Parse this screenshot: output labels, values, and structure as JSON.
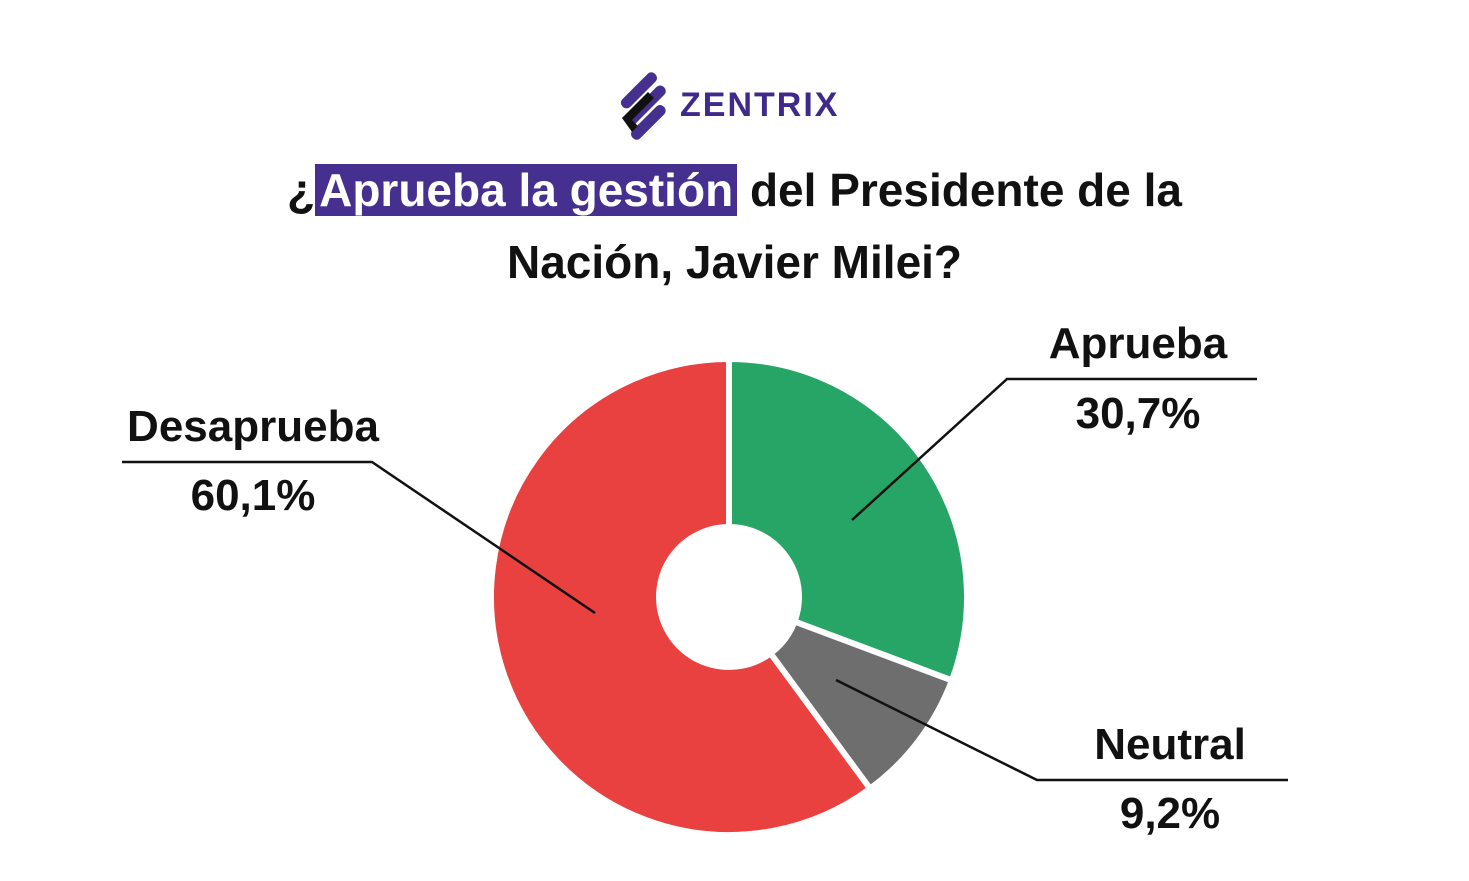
{
  "logo": {
    "text": "ZENTRIX"
  },
  "title": {
    "prefix": "¿",
    "highlight": "Aprueba la gestión",
    "rest": " del Presidente de la",
    "line2": "Nación, Javier Milei?"
  },
  "chart_data": {
    "type": "pie",
    "donut": true,
    "title": "¿Aprueba la gestión del Presidente de la Nación, Javier Milei?",
    "slices": [
      {
        "name": "Aprueba",
        "value": 30.7,
        "label": "30,7%",
        "color": "#27a567"
      },
      {
        "name": "Neutral",
        "value": 9.2,
        "label": "9,2%",
        "color": "#6e6e6e"
      },
      {
        "name": "Desaprueba",
        "value": 60.1,
        "label": "60,1%",
        "color": "#e94040"
      }
    ],
    "highlight_color": "#45308f"
  }
}
